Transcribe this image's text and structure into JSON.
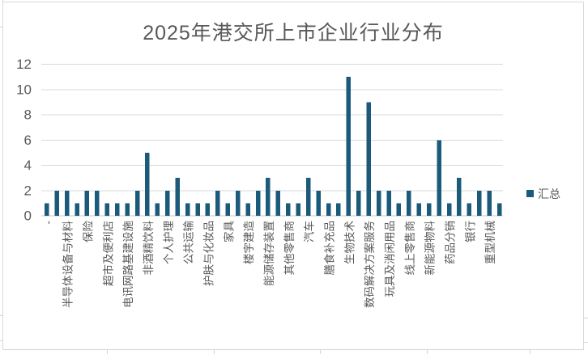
{
  "chart": {
    "title": "2025年港交所上市企业行业分布",
    "legend": {
      "label": "汇总"
    }
  },
  "colors": {
    "bar": "#1b5a7a",
    "gridline": "#d9d9d9",
    "axis_line": "#c9c9c9",
    "axis_text": "#595959",
    "title_text": "#595959",
    "chart_border": "#d9d9d9",
    "worksheet_gridline": "#d4d4d4",
    "background": "#ffffff"
  },
  "chart_data": {
    "type": "bar",
    "title": "2025年港交所上市企业行业分布",
    "series": [
      {
        "name": "汇总",
        "values": [
          1,
          2,
          2,
          1,
          2,
          2,
          1,
          1,
          1,
          2,
          5,
          1,
          2,
          3,
          1,
          1,
          1,
          2,
          1,
          2,
          1,
          2,
          3,
          2,
          1,
          1,
          3,
          2,
          1,
          1,
          11,
          2,
          9,
          2,
          2,
          1,
          2,
          1,
          1,
          6,
          1,
          3,
          1,
          2,
          2,
          1
        ]
      }
    ],
    "categories": [
      "-",
      "",
      "半导体设备与材料",
      "",
      "保险",
      "",
      "超市及便利店",
      "",
      "电讯网路基建设施",
      "",
      "非酒精饮料",
      "",
      "个人护理",
      "",
      "公共运输",
      "",
      "护肤与化妆品",
      "",
      "家具",
      "",
      "楼宇建造",
      "",
      "能源储存装置",
      "",
      "其他零售商",
      "",
      "汽车",
      "",
      "膳食补充品",
      "",
      "生物技术",
      "",
      "数码解决方案服务",
      "",
      "玩具及消闲用品",
      "",
      "线上零售商",
      "",
      "新能源物料",
      "",
      "药品分销",
      "",
      "银行",
      "",
      "重型机械",
      ""
    ],
    "xlabel": "",
    "ylabel": "",
    "ylim": [
      0,
      12
    ],
    "yticks": [
      0,
      2,
      4,
      6,
      8,
      10,
      12
    ],
    "grid": true,
    "legend_position": "middle-right",
    "category_labels_rotated_90": true,
    "unlabeled_categories_shown_blank": true
  }
}
